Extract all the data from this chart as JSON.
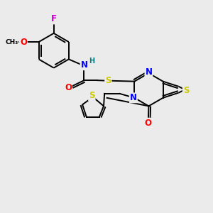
{
  "background_color": "#ebebeb",
  "bond_color": "black",
  "atom_colors": {
    "N": "#0000ff",
    "O": "#ff0000",
    "S": "#cccc00",
    "F": "#cc00cc",
    "H": "#008080",
    "C": "black"
  },
  "figsize": [
    3.0,
    3.0
  ],
  "dpi": 100,
  "xlim": [
    0,
    10
  ],
  "ylim": [
    0,
    10
  ]
}
